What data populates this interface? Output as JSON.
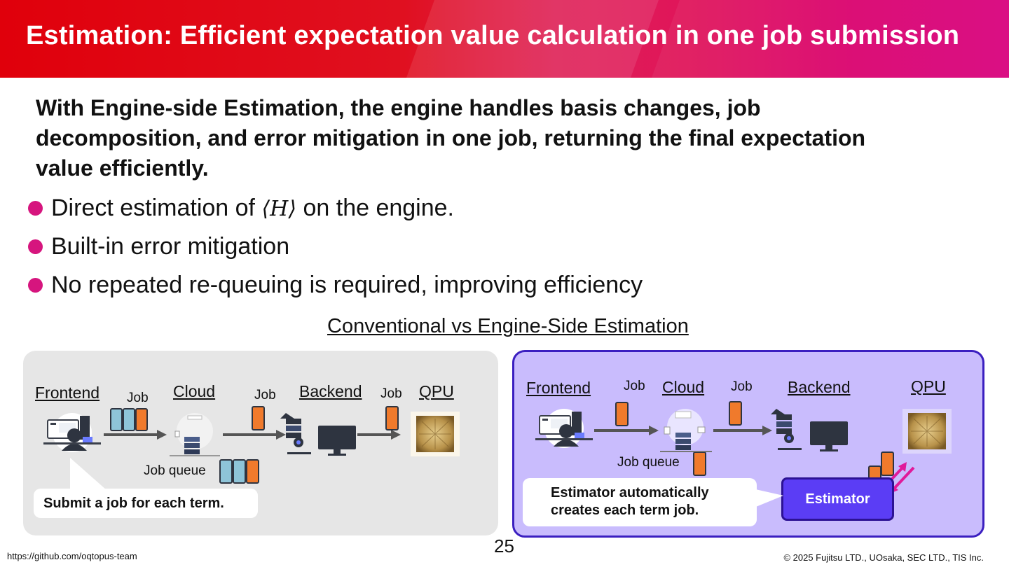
{
  "title": "Estimation: Efficient expectation value calculation in one job submission",
  "lead": "With Engine-side Estimation, the engine handles basis changes, job decomposition, and error mitigation in one job, returning the final expectation value efficiently.",
  "bullets": [
    {
      "pre": "Direct estimation of ",
      "math": "⟨H⟩",
      "post": " on the engine."
    },
    {
      "pre": "Built-in error mitigation",
      "math": "",
      "post": ""
    },
    {
      "pre": "No repeated re-queuing is required, improving efficiency",
      "math": "",
      "post": ""
    }
  ],
  "diagram_title": "Conventional vs Engine-Side Estimation",
  "conventional": {
    "frontend": "Frontend",
    "cloud": "Cloud",
    "backend": "Backend",
    "qpu": "QPU",
    "job_labels": [
      "Job",
      "Job",
      "Job"
    ],
    "job_queue": "Job queue",
    "callout": "Submit a job for each term."
  },
  "engine_side": {
    "frontend": "Frontend",
    "cloud": "Cloud",
    "backend": "Backend",
    "qpu": "QPU",
    "job_labels": [
      "Job",
      "Job"
    ],
    "job_queue": "Job queue",
    "callout_line1": "Estimator automatically",
    "callout_line2": "creates each term job.",
    "estimator": "Estimator"
  },
  "page_number": "25",
  "footer_left": "https://github.com/oqtopus-team",
  "footer_right": "© 2025 Fujitsu LTD., UOsaka, SEC LTD., TIS Inc.",
  "colors": {
    "accent_pink": "#d6157e",
    "job_orange": "#f07a2c",
    "job_blue": "#8ec4d8",
    "estimator_purple": "#5b3df5",
    "panel_lavender": "#c9bcfd"
  }
}
